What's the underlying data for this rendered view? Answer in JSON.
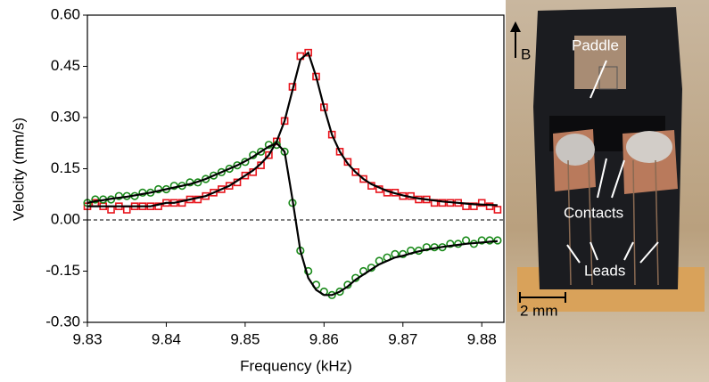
{
  "chart_data": {
    "type": "scatter",
    "x_label": "Frequency (kHz)",
    "y_label": "Velocity (mm/s)",
    "xlim": [
      9.83,
      9.8828
    ],
    "ylim": [
      -0.3,
      0.6
    ],
    "xticks": [
      9.83,
      9.84,
      9.85,
      9.86,
      9.87,
      9.88
    ],
    "yticks": [
      {
        "value": -0.3,
        "label": "-0.30"
      },
      -0.15,
      {
        "value": 0,
        "label": "0.00"
      },
      0.15,
      {
        "value": 0.3,
        "label": "0.30"
      },
      0.45,
      {
        "value": 0.6,
        "label": "0.60"
      }
    ],
    "reference_line": 0,
    "x": [
      9.83,
      9.831,
      9.832,
      9.833,
      9.834,
      9.835,
      9.836,
      9.837,
      9.838,
      9.839,
      9.84,
      9.841,
      9.842,
      9.843,
      9.844,
      9.845,
      9.846,
      9.847,
      9.848,
      9.849,
      9.85,
      9.851,
      9.852,
      9.853,
      9.854,
      9.855,
      9.856,
      9.857,
      9.858,
      9.859,
      9.86,
      9.861,
      9.862,
      9.863,
      9.864,
      9.865,
      9.866,
      9.867,
      9.868,
      9.869,
      9.87,
      9.871,
      9.872,
      9.873,
      9.874,
      9.875,
      9.876,
      9.877,
      9.878,
      9.879,
      9.88,
      9.881,
      9.882
    ],
    "series": [
      {
        "mode": "square",
        "color": "#e8141c",
        "values": [
          0.04,
          0.05,
          0.04,
          0.03,
          0.04,
          0.03,
          0.04,
          0.04,
          0.04,
          0.04,
          0.05,
          0.05,
          0.05,
          0.06,
          0.06,
          0.07,
          0.08,
          0.09,
          0.1,
          0.11,
          0.13,
          0.14,
          0.16,
          0.19,
          0.23,
          0.29,
          0.39,
          0.48,
          0.49,
          0.42,
          0.33,
          0.25,
          0.2,
          0.17,
          0.14,
          0.12,
          0.1,
          0.09,
          0.08,
          0.08,
          0.07,
          0.07,
          0.06,
          0.06,
          0.05,
          0.05,
          0.05,
          0.05,
          0.04,
          0.04,
          0.05,
          0.04,
          0.03
        ]
      },
      {
        "mode": "circle",
        "color": "#1a8a1a",
        "values": [
          0.05,
          0.06,
          0.06,
          0.06,
          0.07,
          0.07,
          0.07,
          0.08,
          0.08,
          0.09,
          0.09,
          0.1,
          0.1,
          0.11,
          0.11,
          0.12,
          0.13,
          0.14,
          0.15,
          0.16,
          0.17,
          0.19,
          0.2,
          0.22,
          0.22,
          0.2,
          0.05,
          -0.09,
          -0.15,
          -0.19,
          -0.21,
          -0.22,
          -0.21,
          -0.19,
          -0.17,
          -0.15,
          -0.14,
          -0.12,
          -0.11,
          -0.1,
          -0.1,
          -0.09,
          -0.09,
          -0.08,
          -0.08,
          -0.08,
          -0.07,
          -0.07,
          -0.06,
          -0.07,
          -0.06,
          -0.06,
          -0.06
        ]
      },
      {
        "mode": "line",
        "color": "#000000",
        "values": [
          0.04,
          0.04,
          0.04,
          0.04,
          0.04,
          0.04,
          0.04,
          0.04,
          0.04,
          0.045,
          0.05,
          0.05,
          0.055,
          0.06,
          0.065,
          0.07,
          0.08,
          0.09,
          0.1,
          0.115,
          0.13,
          0.145,
          0.165,
          0.19,
          0.23,
          0.29,
          0.38,
          0.47,
          0.49,
          0.42,
          0.33,
          0.25,
          0.2,
          0.165,
          0.14,
          0.12,
          0.105,
          0.095,
          0.085,
          0.078,
          0.072,
          0.067,
          0.063,
          0.06,
          0.057,
          0.054,
          0.052,
          0.05,
          0.048,
          0.046,
          0.045,
          0.044,
          0.043
        ]
      },
      {
        "mode": "line",
        "color": "#000000",
        "values": [
          0.05,
          0.055,
          0.058,
          0.062,
          0.065,
          0.068,
          0.072,
          0.076,
          0.08,
          0.085,
          0.09,
          0.095,
          0.1,
          0.105,
          0.112,
          0.12,
          0.13,
          0.14,
          0.15,
          0.16,
          0.172,
          0.185,
          0.2,
          0.215,
          0.225,
          0.2,
          0.06,
          -0.09,
          -0.17,
          -0.205,
          -0.22,
          -0.22,
          -0.21,
          -0.195,
          -0.175,
          -0.16,
          -0.145,
          -0.13,
          -0.12,
          -0.11,
          -0.105,
          -0.098,
          -0.092,
          -0.087,
          -0.083,
          -0.079,
          -0.076,
          -0.073,
          -0.07,
          -0.068,
          -0.066,
          -0.064,
          -0.062
        ]
      }
    ]
  },
  "photo": {
    "field": "B",
    "paddle": "Paddle",
    "contacts": "Contacts",
    "leads": "Leads",
    "scale_bar": "2 mm"
  }
}
